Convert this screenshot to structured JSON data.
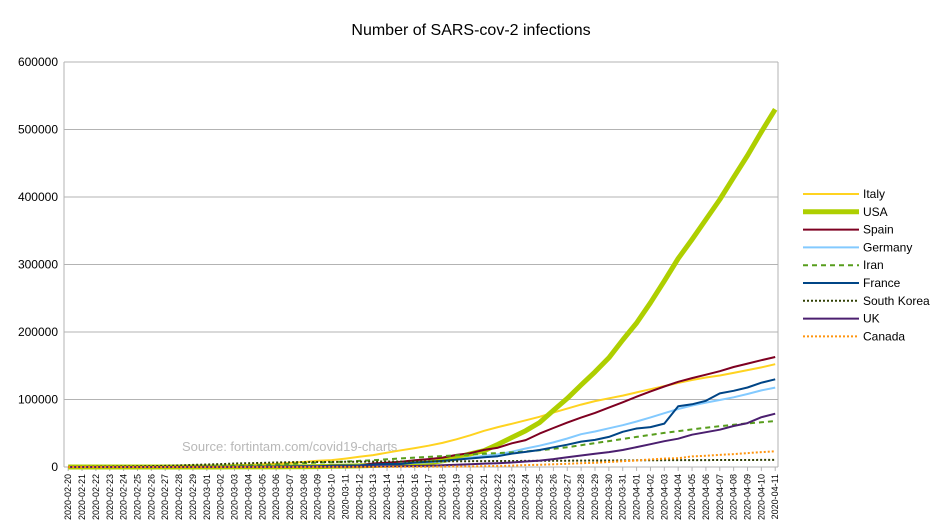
{
  "chart_data": {
    "type": "line",
    "title": "Number of SARS-cov-2 infections",
    "watermark": "Source: fortintam.com/covid19-charts",
    "ylim": [
      0,
      600000
    ],
    "yticks": [
      0,
      100000,
      200000,
      300000,
      400000,
      500000,
      600000
    ],
    "grid": "y",
    "legend_position": "right",
    "x": [
      "2020-02-20",
      "2020-02-21",
      "2020-02-22",
      "2020-02-23",
      "2020-02-24",
      "2020-02-25",
      "2020-02-26",
      "2020-02-27",
      "2020-02-28",
      "2020-02-29",
      "2020-03-01",
      "2020-03-02",
      "2020-03-03",
      "2020-03-04",
      "2020-03-05",
      "2020-03-06",
      "2020-03-07",
      "2020-03-08",
      "2020-03-09",
      "2020-03-10",
      "2020-03-11",
      "2020-03-12",
      "2020-03-13",
      "2020-03-14",
      "2020-03-15",
      "2020-03-16",
      "2020-03-17",
      "2020-03-18",
      "2020-03-19",
      "2020-03-20",
      "2020-03-21",
      "2020-03-22",
      "2020-03-23",
      "2020-03-24",
      "2020-03-25",
      "2020-03-26",
      "2020-03-27",
      "2020-03-28",
      "2020-03-29",
      "2020-03-30",
      "2020-03-31",
      "2020-04-01",
      "2020-04-02",
      "2020-04-03",
      "2020-04-04",
      "2020-04-05",
      "2020-04-06",
      "2020-04-07",
      "2020-04-08",
      "2020-04-09",
      "2020-04-10",
      "2020-04-11"
    ],
    "series": [
      {
        "name": "Italy",
        "color": "#ffd320",
        "width": 2,
        "dash": "",
        "values": [
          3,
          20,
          79,
          150,
          229,
          322,
          400,
          650,
          888,
          1128,
          1694,
          2036,
          2502,
          3089,
          3858,
          4636,
          5883,
          7375,
          9172,
          10149,
          12462,
          15113,
          17660,
          21157,
          24747,
          27980,
          31506,
          35713,
          41035,
          47021,
          53578,
          59138,
          63927,
          69176,
          74386,
          80589,
          86498,
          92472,
          97689,
          101739,
          105792,
          110574,
          115242,
          119827,
          124632,
          128948,
          132547,
          135586,
          139422,
          143626,
          147577,
          152271
        ]
      },
      {
        "name": "USA",
        "color": "#aecf00",
        "width": 5,
        "dash": "",
        "values": [
          13,
          15,
          15,
          15,
          35,
          35,
          35,
          53,
          59,
          60,
          62,
          70,
          108,
          129,
          148,
          213,
          336,
          417,
          578,
          1018,
          1263,
          1690,
          2250,
          2943,
          3680,
          4663,
          6411,
          9197,
          13789,
          19383,
          24207,
          33546,
          43735,
          53740,
          65778,
          83836,
          101657,
          121478,
          140886,
          161807,
          188172,
          213372,
          243453,
          275586,
          308850,
          337072,
          366667,
          396223,
          429052,
          461437,
          496535,
          530000
        ]
      },
      {
        "name": "Spain",
        "color": "#7e0021",
        "width": 2,
        "dash": "",
        "values": [
          2,
          2,
          2,
          2,
          2,
          2,
          13,
          15,
          32,
          45,
          84,
          120,
          165,
          222,
          259,
          400,
          500,
          673,
          1073,
          1695,
          2277,
          2277,
          5232,
          6391,
          7798,
          9942,
          11748,
          13910,
          17963,
          20410,
          25374,
          28603,
          35136,
          39885,
          49515,
          57786,
          65719,
          73235,
          80110,
          87956,
          95923,
          104118,
          112065,
          119199,
          126168,
          131646,
          136675,
          141942,
          148220,
          153222,
          158273,
          163027
        ]
      },
      {
        "name": "Germany",
        "color": "#83caff",
        "width": 2,
        "dash": "",
        "values": [
          16,
          16,
          16,
          16,
          16,
          16,
          21,
          26,
          53,
          66,
          117,
          150,
          188,
          240,
          400,
          639,
          795,
          902,
          1139,
          1296,
          1567,
          2369,
          3062,
          3795,
          4838,
          6012,
          7156,
          8198,
          10999,
          13957,
          16662,
          18610,
          22672,
          27436,
          31554,
          36508,
          42288,
          48582,
          52547,
          57298,
          61913,
          67366,
          73522,
          79696,
          85903,
          91159,
          95391,
          99225,
          103228,
          108202,
          113525,
          117658
        ]
      },
      {
        "name": "Iran",
        "color": "#579d1c",
        "width": 2,
        "dash": "5,4",
        "values": [
          2,
          5,
          18,
          28,
          43,
          61,
          95,
          139,
          245,
          388,
          593,
          978,
          1501,
          2336,
          2922,
          3513,
          4747,
          5823,
          6566,
          7161,
          8042,
          9000,
          10075,
          11364,
          12729,
          13938,
          14991,
          16169,
          17361,
          18407,
          19644,
          20610,
          21638,
          23049,
          24811,
          27017,
          29406,
          32332,
          35408,
          38309,
          41495,
          44605,
          47593,
          50468,
          53183,
          55743,
          58226,
          60500,
          62589,
          64586,
          66220,
          68192
        ]
      },
      {
        "name": "France",
        "color": "#004586",
        "width": 2,
        "dash": "",
        "values": [
          12,
          12,
          12,
          12,
          12,
          12,
          18,
          38,
          57,
          100,
          130,
          191,
          204,
          288,
          380,
          656,
          957,
          1134,
          1217,
          1792,
          2290,
          2290,
          3672,
          4480,
          4513,
          6650,
          7699,
          9105,
          10947,
          12612,
          14459,
          16018,
          19856,
          22302,
          25233,
          29155,
          32964,
          37575,
          40174,
          44550,
          52128,
          56989,
          59105,
          64338,
          89953,
          92839,
          98010,
          109069,
          112950,
          117749,
          124869,
          130000
        ]
      },
      {
        "name": "South Korea",
        "color": "#314004",
        "width": 2,
        "dash": "2,2",
        "values": [
          104,
          204,
          433,
          602,
          833,
          977,
          1261,
          1766,
          2337,
          3150,
          3736,
          4335,
          5186,
          5621,
          6088,
          6593,
          7041,
          7314,
          7478,
          7513,
          7755,
          7869,
          7979,
          8086,
          8162,
          8236,
          8320,
          8413,
          8565,
          8652,
          8799,
          8897,
          8961,
          9037,
          9137,
          9241,
          9332,
          9478,
          9583,
          9661,
          9786,
          9887,
          9976,
          10062,
          10156,
          10237,
          10284,
          10331,
          10384,
          10423,
          10450,
          10480
        ]
      },
      {
        "name": "UK",
        "color": "#4b1f6f",
        "width": 2,
        "dash": "",
        "values": [
          9,
          9,
          9,
          9,
          13,
          13,
          13,
          15,
          20,
          23,
          36,
          40,
          51,
          85,
          114,
          160,
          206,
          271,
          321,
          373,
          456,
          590,
          798,
          1140,
          1140,
          1543,
          1950,
          2626,
          3269,
          3983,
          5018,
          5683,
          6650,
          8077,
          9529,
          11658,
          14543,
          17089,
          19522,
          22141,
          25150,
          29474,
          33718,
          38168,
          41903,
          47806,
          51608,
          55242,
          60733,
          65077,
          73758,
          78991
        ]
      },
      {
        "name": "Canada",
        "color": "#ff950e",
        "width": 2,
        "dash": "2,2",
        "values": [
          8,
          8,
          9,
          9,
          9,
          11,
          11,
          14,
          14,
          20,
          24,
          27,
          30,
          33,
          37,
          49,
          54,
          64,
          77,
          79,
          108,
          117,
          193,
          198,
          252,
          415,
          478,
          657,
          800,
          943,
          1277,
          1469,
          2088,
          2790,
          3251,
          4042,
          4682,
          5576,
          6280,
          7398,
          8527,
          9560,
          11284,
          12437,
          12978,
          15756,
          16563,
          17872,
          19141,
          20654,
          22059,
          23316
        ]
      }
    ]
  }
}
